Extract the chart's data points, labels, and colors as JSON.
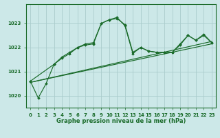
{
  "bg_color": "#cce8e8",
  "plot_bg_color": "#cce8e8",
  "grid_color": "#aacccc",
  "line_color": "#1a6b2a",
  "xlabel": "Graphe pression niveau de la mer (hPa)",
  "ylim": [
    1019.5,
    1023.8
  ],
  "xlim": [
    -0.5,
    23.5
  ],
  "yticks": [
    1020,
    1021,
    1022,
    1023
  ],
  "xticks": [
    0,
    1,
    2,
    3,
    4,
    5,
    6,
    7,
    8,
    9,
    10,
    11,
    12,
    13,
    14,
    15,
    16,
    17,
    18,
    19,
    20,
    21,
    22,
    23
  ],
  "series1": [
    1020.6,
    1019.9,
    1020.5,
    1021.3,
    1021.55,
    1021.75,
    1022.0,
    1022.1,
    1022.15,
    1023.0,
    1023.15,
    1023.25,
    1022.9,
    1021.75,
    1022.0,
    1021.85,
    1021.8,
    1021.8,
    1021.8,
    1022.1,
    1022.5,
    1022.3,
    1022.55,
    1022.2
  ],
  "series2_x": [
    0,
    3,
    4,
    5,
    6,
    7,
    8,
    9,
    10,
    11,
    12,
    13,
    14,
    15,
    16,
    17,
    18,
    19,
    20,
    21,
    22,
    23
  ],
  "series2_y": [
    1020.6,
    1021.3,
    1021.6,
    1021.8,
    1022.0,
    1022.15,
    1022.2,
    1023.0,
    1023.15,
    1023.2,
    1022.95,
    1021.8,
    1022.0,
    1021.85,
    1021.8,
    1021.8,
    1021.8,
    1022.15,
    1022.5,
    1022.3,
    1022.5,
    1022.2
  ],
  "trend1_x": [
    0,
    23
  ],
  "trend1_y": [
    1020.55,
    1022.15
  ],
  "trend2_x": [
    0,
    23
  ],
  "trend2_y": [
    1020.55,
    1022.25
  ]
}
